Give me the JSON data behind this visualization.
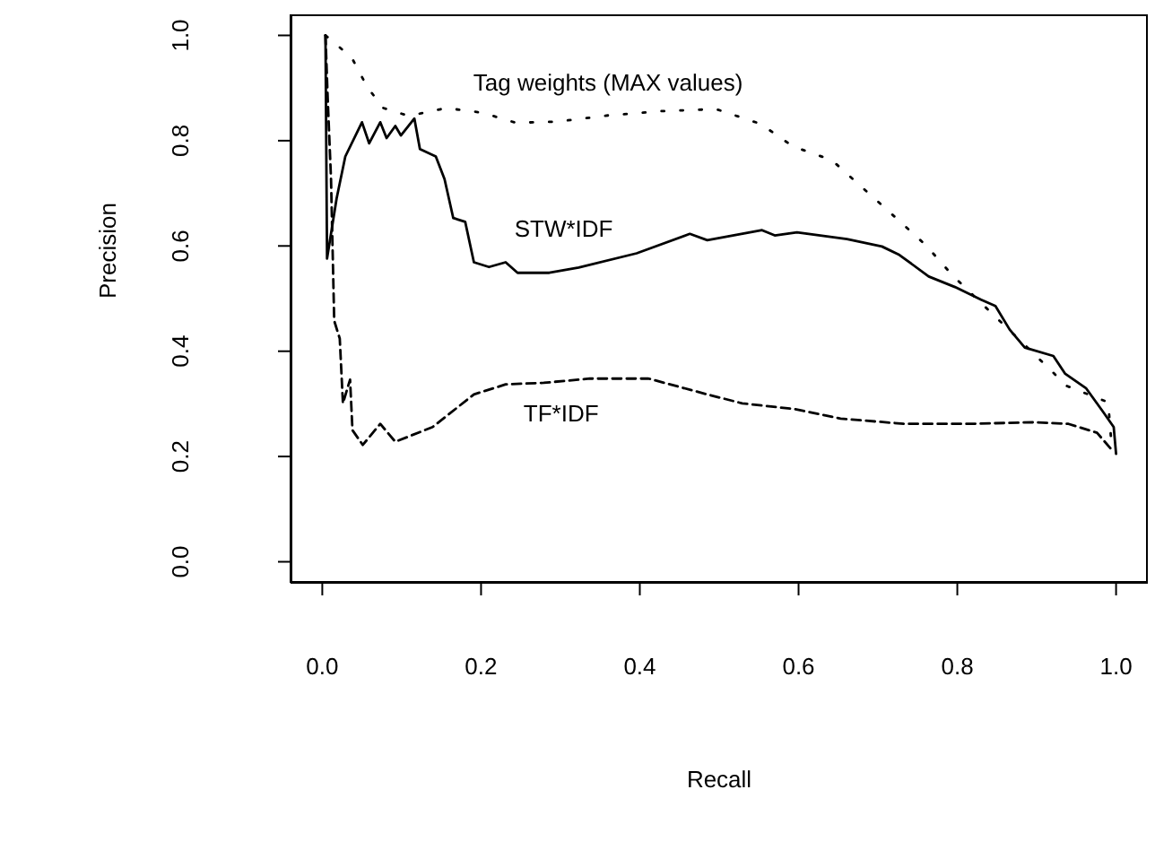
{
  "chart_data": {
    "type": "line",
    "xlabel": "Recall",
    "ylabel": "Precision",
    "xlim": [
      -0.04,
      1.04
    ],
    "ylim": [
      -0.04,
      1.04
    ],
    "xticks": [
      {
        "value": 0,
        "label": "0.0"
      },
      {
        "value": 0.2,
        "label": "0.2"
      },
      {
        "value": 0.4,
        "label": "0.4"
      },
      {
        "value": 0.6,
        "label": "0.6"
      },
      {
        "value": 0.8,
        "label": "0.8"
      },
      {
        "value": 1,
        "label": "1.0"
      }
    ],
    "yticks": [
      {
        "value": 0,
        "label": "0.0"
      },
      {
        "value": 0.2,
        "label": "0.2"
      },
      {
        "value": 0.4,
        "label": "0.4"
      },
      {
        "value": 0.6,
        "label": "0.6"
      },
      {
        "value": 0.8,
        "label": "0.8"
      },
      {
        "value": 1,
        "label": "1.0"
      }
    ],
    "grid": false,
    "legend": false,
    "marker": "none",
    "series": [
      {
        "name": "STW*IDF",
        "color": "#000000",
        "line_style": "solid",
        "x": [
          0.004,
          0.006,
          0.018,
          0.029,
          0.05,
          0.059,
          0.073,
          0.081,
          0.092,
          0.099,
          0.116,
          0.123,
          0.143,
          0.154,
          0.165,
          0.18,
          0.191,
          0.21,
          0.231,
          0.246,
          0.286,
          0.323,
          0.396,
          0.463,
          0.485,
          0.554,
          0.57,
          0.598,
          0.661,
          0.705,
          0.727,
          0.764,
          0.797,
          0.83,
          0.848,
          0.866,
          0.885,
          0.921,
          0.936,
          0.962,
          0.984,
          0.997,
          1.0
        ],
        "values": [
          1.0,
          0.576,
          0.69,
          0.77,
          0.835,
          0.795,
          0.835,
          0.805,
          0.828,
          0.81,
          0.842,
          0.784,
          0.77,
          0.727,
          0.653,
          0.646,
          0.569,
          0.56,
          0.569,
          0.549,
          0.549,
          0.559,
          0.586,
          0.623,
          0.611,
          0.63,
          0.62,
          0.626,
          0.613,
          0.599,
          0.583,
          0.542,
          0.522,
          0.498,
          0.486,
          0.441,
          0.407,
          0.391,
          0.357,
          0.33,
          0.284,
          0.256,
          0.205
        ]
      },
      {
        "name": "TF*IDF",
        "color": "#000000",
        "line_style": "dashed",
        "x": [
          0.004,
          0.007,
          0.011,
          0.015,
          0.022,
          0.026,
          0.035,
          0.038,
          0.051,
          0.073,
          0.092,
          0.139,
          0.191,
          0.231,
          0.279,
          0.337,
          0.411,
          0.485,
          0.529,
          0.595,
          0.653,
          0.734,
          0.815,
          0.896,
          0.94,
          0.976,
          0.995
        ],
        "values": [
          1.0,
          0.873,
          0.727,
          0.458,
          0.424,
          0.301,
          0.346,
          0.25,
          0.222,
          0.262,
          0.228,
          0.256,
          0.318,
          0.337,
          0.34,
          0.348,
          0.348,
          0.318,
          0.301,
          0.29,
          0.272,
          0.262,
          0.262,
          0.265,
          0.262,
          0.245,
          0.212
        ]
      },
      {
        "name": "Tag weights (MAX values)",
        "color": "#000000",
        "line_style": "dotted",
        "x": [
          0.004,
          0.037,
          0.057,
          0.077,
          0.109,
          0.156,
          0.202,
          0.244,
          0.295,
          0.36,
          0.426,
          0.496,
          0.552,
          0.593,
          0.642,
          0.681,
          0.72,
          0.76,
          0.794,
          0.902,
          0.938,
          0.99,
          0.994
        ],
        "values": [
          1.0,
          0.958,
          0.901,
          0.862,
          0.847,
          0.862,
          0.853,
          0.834,
          0.836,
          0.848,
          0.856,
          0.86,
          0.832,
          0.789,
          0.763,
          0.71,
          0.657,
          0.602,
          0.544,
          0.387,
          0.334,
          0.303,
          0.228
        ]
      }
    ]
  }
}
